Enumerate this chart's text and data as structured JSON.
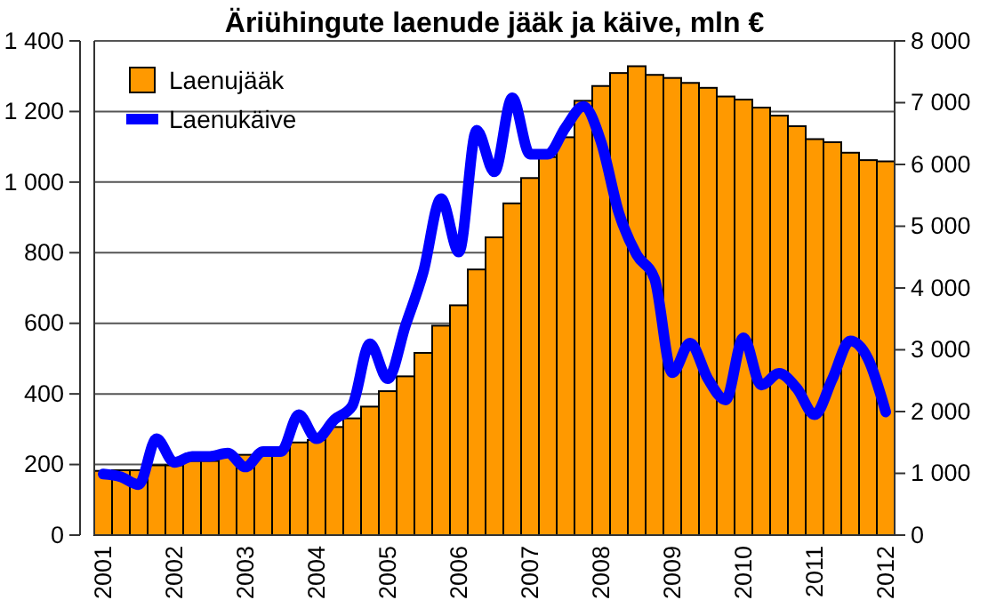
{
  "chart_data": {
    "type": "bar",
    "title": "Äriühingute laenude jääk ja käive, mln €",
    "categories": [
      "2001",
      null,
      null,
      null,
      "2002",
      null,
      null,
      null,
      "2003",
      null,
      null,
      null,
      "2004",
      null,
      null,
      null,
      "2005",
      null,
      null,
      null,
      "2006",
      null,
      null,
      null,
      "2007",
      null,
      null,
      null,
      "2008",
      null,
      null,
      null,
      "2009",
      null,
      null,
      null,
      "2010",
      null,
      null,
      null,
      "2011",
      null,
      null,
      null,
      "2012"
    ],
    "series": [
      {
        "name": "Laenujääk",
        "axis": "y2",
        "color": "#ff9900",
        "values": [
          1040,
          1050,
          1050,
          1130,
          1130,
          1200,
          1200,
          1280,
          1300,
          1300,
          1370,
          1500,
          1540,
          1750,
          1890,
          2080,
          2330,
          2570,
          2950,
          3390,
          3720,
          4300,
          4820,
          5370,
          5780,
          6120,
          6440,
          7030,
          7270,
          7480,
          7590,
          7450,
          7400,
          7320,
          7240,
          7100,
          7050,
          6920,
          6790,
          6620,
          6410,
          6360,
          6190,
          6070,
          6050
        ]
      },
      {
        "name": "Laenukäive",
        "type": "line",
        "color": "#0000ff",
        "values": [
          173,
          165,
          143,
          273,
          206,
          223,
          223,
          232,
          193,
          237,
          237,
          341,
          273,
          327,
          366,
          542,
          443,
          594,
          745,
          953,
          802,
          1147,
          1029,
          1239,
          1079,
          1079,
          1155,
          1214,
          1113,
          912,
          794,
          727,
          460,
          544,
          443,
          383,
          559,
          425,
          458,
          416,
          341,
          442,
          550,
          500,
          349
        ]
      }
    ],
    "ylim": [
      0,
      1400
    ],
    "yticks": [
      0,
      {
        "value": 200,
        "label": "200"
      },
      {
        "value": 400,
        "label": "400"
      },
      {
        "value": 600,
        "label": "600"
      },
      {
        "value": 800,
        "label": "800"
      },
      {
        "value": 1000,
        "label": "1 000"
      },
      {
        "value": 1200,
        "label": "1 200"
      },
      {
        "value": 1400,
        "label": "1 400"
      }
    ],
    "y2lim": [
      0,
      8000
    ],
    "y2ticks": [
      0,
      {
        "value": 1000,
        "label": "1 000"
      },
      {
        "value": 2000,
        "label": "2 000"
      },
      {
        "value": 3000,
        "label": "3 000"
      },
      {
        "value": 4000,
        "label": "4 000"
      },
      {
        "value": 5000,
        "label": "5 000"
      },
      {
        "value": 6000,
        "label": "6 000"
      },
      {
        "value": 7000,
        "label": "7 000"
      },
      {
        "value": 8000,
        "label": "8 000"
      }
    ],
    "grid": "y",
    "legend": "top left",
    "line_style": "solid",
    "marker": "none"
  }
}
